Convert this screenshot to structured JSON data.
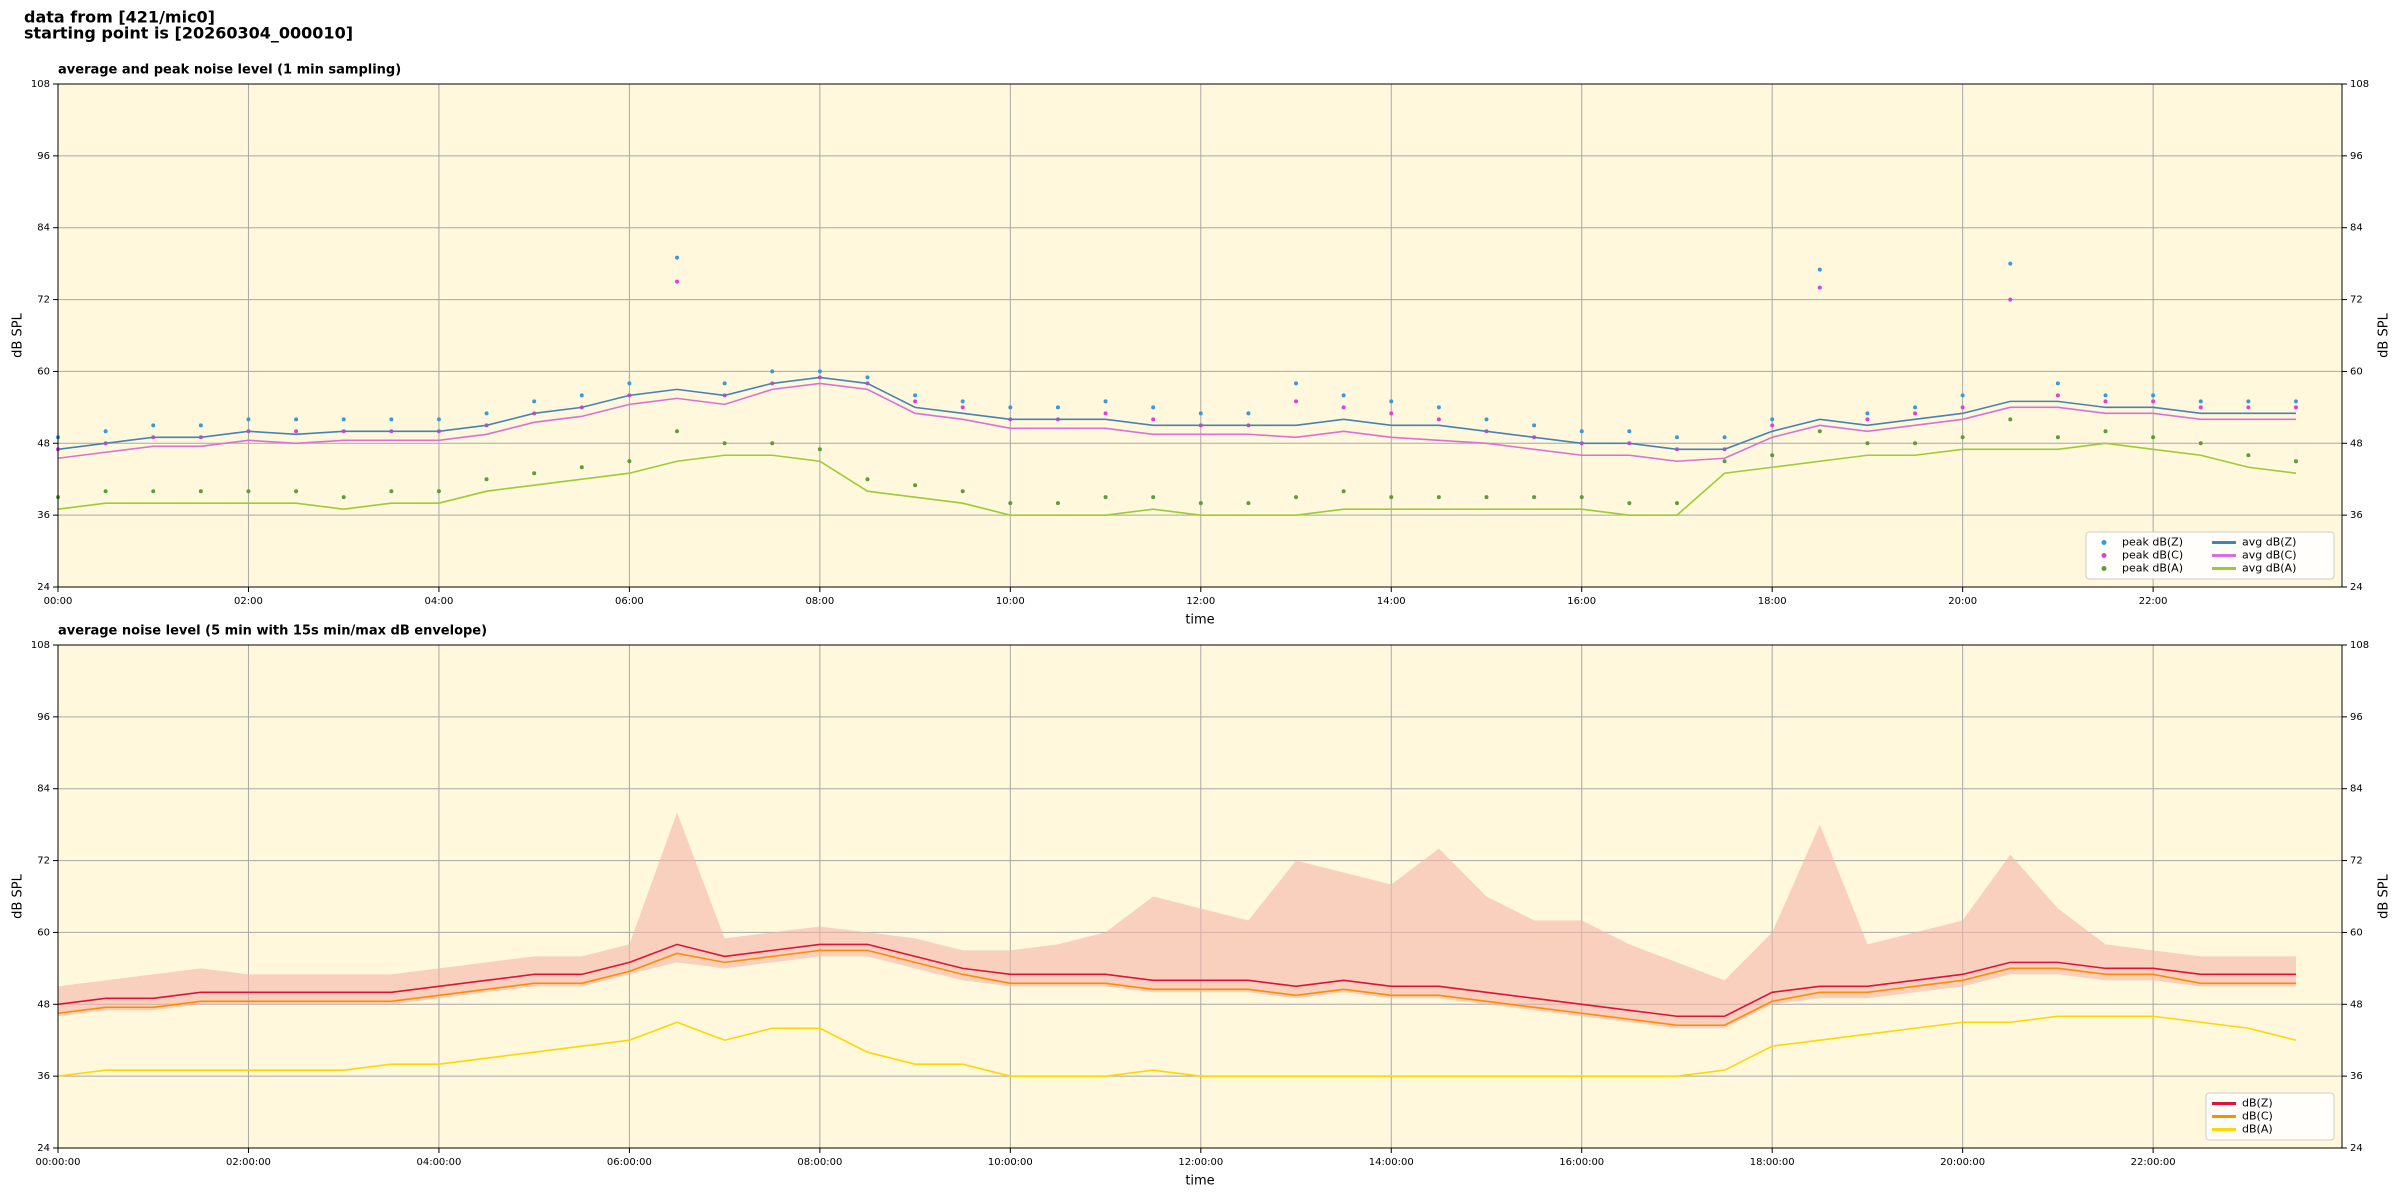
{
  "header": {
    "line1": "data from [421/mic0]",
    "line2": "starting point is [20260304_000010]"
  },
  "chart_data": [
    {
      "type": "line",
      "title": "average and peak noise level (1 min sampling)",
      "xlabel": "time",
      "ylabel": "dB SPL",
      "ylabel_right": "dB SPL",
      "x": [
        0,
        30,
        60,
        90,
        120,
        150,
        180,
        210,
        240,
        270,
        300,
        330,
        360,
        390,
        420,
        450,
        480,
        510,
        540,
        570,
        600,
        630,
        660,
        690,
        720,
        750,
        780,
        810,
        840,
        870,
        900,
        930,
        960,
        990,
        1020,
        1050,
        1080,
        1110,
        1140,
        1170,
        1200,
        1230,
        1260,
        1290,
        1320,
        1350,
        1380,
        1410
      ],
      "xlim": [
        0,
        1439
      ],
      "xticks": [
        {
          "value": 0,
          "label": "00:00"
        },
        {
          "value": 120,
          "label": "02:00"
        },
        {
          "value": 240,
          "label": "04:00"
        },
        {
          "value": 360,
          "label": "06:00"
        },
        {
          "value": 480,
          "label": "08:00"
        },
        {
          "value": 600,
          "label": "10:00"
        },
        {
          "value": 720,
          "label": "12:00"
        },
        {
          "value": 840,
          "label": "14:00"
        },
        {
          "value": 960,
          "label": "16:00"
        },
        {
          "value": 1080,
          "label": "18:00"
        },
        {
          "value": 1200,
          "label": "20:00"
        },
        {
          "value": 1320,
          "label": "22:00"
        }
      ],
      "ylim": [
        24,
        108
      ],
      "yticks": [
        24,
        36,
        48,
        60,
        72,
        84,
        96,
        108
      ],
      "grid": true,
      "background": "#fff8dc",
      "legend": "lower right",
      "legend_columns": 2,
      "series": [
        {
          "name": "peak dB(Z)",
          "kind": "points",
          "color": "#3a9ad9",
          "values": [
            49,
            50,
            51,
            51,
            52,
            52,
            52,
            52,
            52,
            53,
            55,
            56,
            58,
            79,
            58,
            60,
            60,
            59,
            56,
            55,
            54,
            54,
            55,
            54,
            53,
            53,
            58,
            56,
            55,
            54,
            52,
            51,
            50,
            50,
            49,
            49,
            52,
            77,
            53,
            54,
            56,
            78,
            58,
            56,
            56,
            55,
            55,
            55
          ]
        },
        {
          "name": "peak dB(C)",
          "kind": "points",
          "color": "#e040d8",
          "values": [
            47,
            48,
            49,
            49,
            50,
            50,
            50,
            50,
            50,
            51,
            53,
            54,
            56,
            75,
            56,
            58,
            59,
            58,
            55,
            54,
            52,
            52,
            53,
            52,
            51,
            51,
            55,
            54,
            53,
            52,
            50,
            49,
            48,
            48,
            47,
            47,
            51,
            74,
            52,
            53,
            54,
            72,
            56,
            55,
            55,
            54,
            54,
            54
          ]
        },
        {
          "name": "peak dB(A)",
          "kind": "points",
          "color": "#5a9e3a",
          "values": [
            39,
            40,
            40,
            40,
            40,
            40,
            39,
            40,
            40,
            42,
            43,
            44,
            45,
            50,
            48,
            48,
            47,
            42,
            41,
            40,
            38,
            38,
            39,
            39,
            38,
            38,
            39,
            40,
            39,
            39,
            39,
            39,
            39,
            38,
            38,
            45,
            46,
            50,
            48,
            48,
            49,
            52,
            49,
            50,
            49,
            48,
            46,
            45
          ]
        },
        {
          "name": "avg dB(Z)",
          "kind": "line",
          "color": "#4682b4",
          "values": [
            47,
            48,
            49,
            49,
            50,
            49.5,
            50,
            50,
            50,
            51,
            53,
            54,
            56,
            57,
            56,
            58,
            59,
            58,
            54,
            53,
            52,
            52,
            52,
            51,
            51,
            51,
            51,
            52,
            51,
            51,
            50,
            49,
            48,
            48,
            47,
            47,
            50,
            52,
            51,
            52,
            53,
            55,
            55,
            54,
            54,
            53,
            53,
            53
          ]
        },
        {
          "name": "avg dB(C)",
          "kind": "line",
          "color": "#da70d6",
          "values": [
            45.5,
            46.5,
            47.5,
            47.5,
            48.5,
            48,
            48.5,
            48.5,
            48.5,
            49.5,
            51.5,
            52.5,
            54.5,
            55.5,
            54.5,
            57,
            58,
            57,
            53,
            52,
            50.5,
            50.5,
            50.5,
            49.5,
            49.5,
            49.5,
            49,
            50,
            49,
            48.5,
            48,
            47,
            46,
            46,
            45,
            45.5,
            49,
            51,
            50,
            51,
            52,
            54,
            54,
            53,
            53,
            52,
            52,
            52
          ]
        },
        {
          "name": "avg dB(A)",
          "kind": "line",
          "color": "#9acd32",
          "values": [
            37,
            38,
            38,
            38,
            38,
            38,
            37,
            38,
            38,
            40,
            41,
            42,
            43,
            45,
            46,
            46,
            45,
            40,
            39,
            38,
            36,
            36,
            36,
            37,
            36,
            36,
            36,
            37,
            37,
            37,
            37,
            37,
            37,
            36,
            36,
            43,
            44,
            45,
            46,
            46,
            47,
            47,
            47,
            48,
            47,
            46,
            44,
            43
          ]
        }
      ]
    },
    {
      "type": "line",
      "title": "average noise level (5 min with 15s min/max dB envelope)",
      "xlabel": "time",
      "ylabel": "dB SPL",
      "ylabel_right": "dB SPL",
      "x": [
        0,
        30,
        60,
        90,
        120,
        150,
        180,
        210,
        240,
        270,
        300,
        330,
        360,
        390,
        420,
        450,
        480,
        510,
        540,
        570,
        600,
        630,
        660,
        690,
        720,
        750,
        780,
        810,
        840,
        870,
        900,
        930,
        960,
        990,
        1020,
        1050,
        1080,
        1110,
        1140,
        1170,
        1200,
        1230,
        1260,
        1290,
        1320,
        1350,
        1380,
        1410
      ],
      "xlim": [
        0,
        1439
      ],
      "xticks": [
        {
          "value": 0,
          "label": "00:00:00"
        },
        {
          "value": 120,
          "label": "02:00:00"
        },
        {
          "value": 240,
          "label": "04:00:00"
        },
        {
          "value": 360,
          "label": "06:00:00"
        },
        {
          "value": 480,
          "label": "08:00:00"
        },
        {
          "value": 600,
          "label": "10:00:00"
        },
        {
          "value": 720,
          "label": "12:00:00"
        },
        {
          "value": 840,
          "label": "14:00:00"
        },
        {
          "value": 960,
          "label": "16:00:00"
        },
        {
          "value": 1080,
          "label": "18:00:00"
        },
        {
          "value": 1200,
          "label": "20:00:00"
        },
        {
          "value": 1320,
          "label": "22:00:00"
        }
      ],
      "ylim": [
        24,
        108
      ],
      "yticks": [
        24,
        36,
        48,
        60,
        72,
        84,
        96,
        108
      ],
      "grid": true,
      "background": "#fff8dc",
      "legend": "lower right",
      "legend_columns": 1,
      "series": [
        {
          "name": "dB(Z)",
          "kind": "line",
          "color": "#dc143c",
          "values": [
            48,
            49,
            49,
            50,
            50,
            50,
            50,
            50,
            51,
            52,
            53,
            53,
            55,
            58,
            56,
            57,
            58,
            58,
            56,
            54,
            53,
            53,
            53,
            52,
            52,
            52,
            51,
            52,
            51,
            51,
            50,
            49,
            48,
            47,
            46,
            46,
            50,
            51,
            51,
            52,
            53,
            55,
            55,
            54,
            54,
            53,
            53,
            53
          ],
          "envelope": {
            "color": "#f4b6a8",
            "low": [
              46,
              47,
              47,
              48,
              48,
              48,
              48,
              48,
              49,
              50,
              51,
              51,
              53,
              55,
              54,
              55,
              56,
              56,
              54,
              52,
              51,
              51,
              51,
              50,
              50,
              50,
              49,
              50,
              49,
              49,
              48,
              47,
              46,
              45,
              44,
              44,
              48,
              49,
              49,
              50,
              51,
              53,
              53,
              52,
              52,
              51,
              51,
              51
            ],
            "high": [
              51,
              52,
              53,
              54,
              53,
              53,
              53,
              53,
              54,
              55,
              56,
              56,
              58,
              80,
              59,
              60,
              61,
              60,
              59,
              57,
              57,
              58,
              60,
              66,
              64,
              62,
              72,
              70,
              68,
              74,
              66,
              62,
              62,
              58,
              55,
              52,
              60,
              78,
              58,
              60,
              62,
              73,
              64,
              58,
              57,
              56,
              56,
              56
            ]
          }
        },
        {
          "name": "dB(C)",
          "kind": "line",
          "color": "#ff8c00",
          "values": [
            46.5,
            47.5,
            47.5,
            48.5,
            48.5,
            48.5,
            48.5,
            48.5,
            49.5,
            50.5,
            51.5,
            51.5,
            53.5,
            56.5,
            55,
            56,
            57,
            57,
            55,
            53,
            51.5,
            51.5,
            51.5,
            50.5,
            50.5,
            50.5,
            49.5,
            50.5,
            49.5,
            49.5,
            48.5,
            47.5,
            46.5,
            45.5,
            44.5,
            44.5,
            48.5,
            50,
            50,
            51,
            52,
            54,
            54,
            53,
            53,
            51.5,
            51.5,
            51.5
          ]
        },
        {
          "name": "dB(A)",
          "kind": "line",
          "color": "#ffd700",
          "values": [
            36,
            37,
            37,
            37,
            37,
            37,
            37,
            38,
            38,
            39,
            40,
            41,
            42,
            45,
            42,
            44,
            44,
            40,
            38,
            38,
            36,
            36,
            36,
            37,
            36,
            36,
            36,
            36,
            36,
            36,
            36,
            36,
            36,
            36,
            36,
            37,
            41,
            42,
            43,
            44,
            45,
            45,
            46,
            46,
            46,
            45,
            44,
            42
          ]
        }
      ]
    }
  ]
}
